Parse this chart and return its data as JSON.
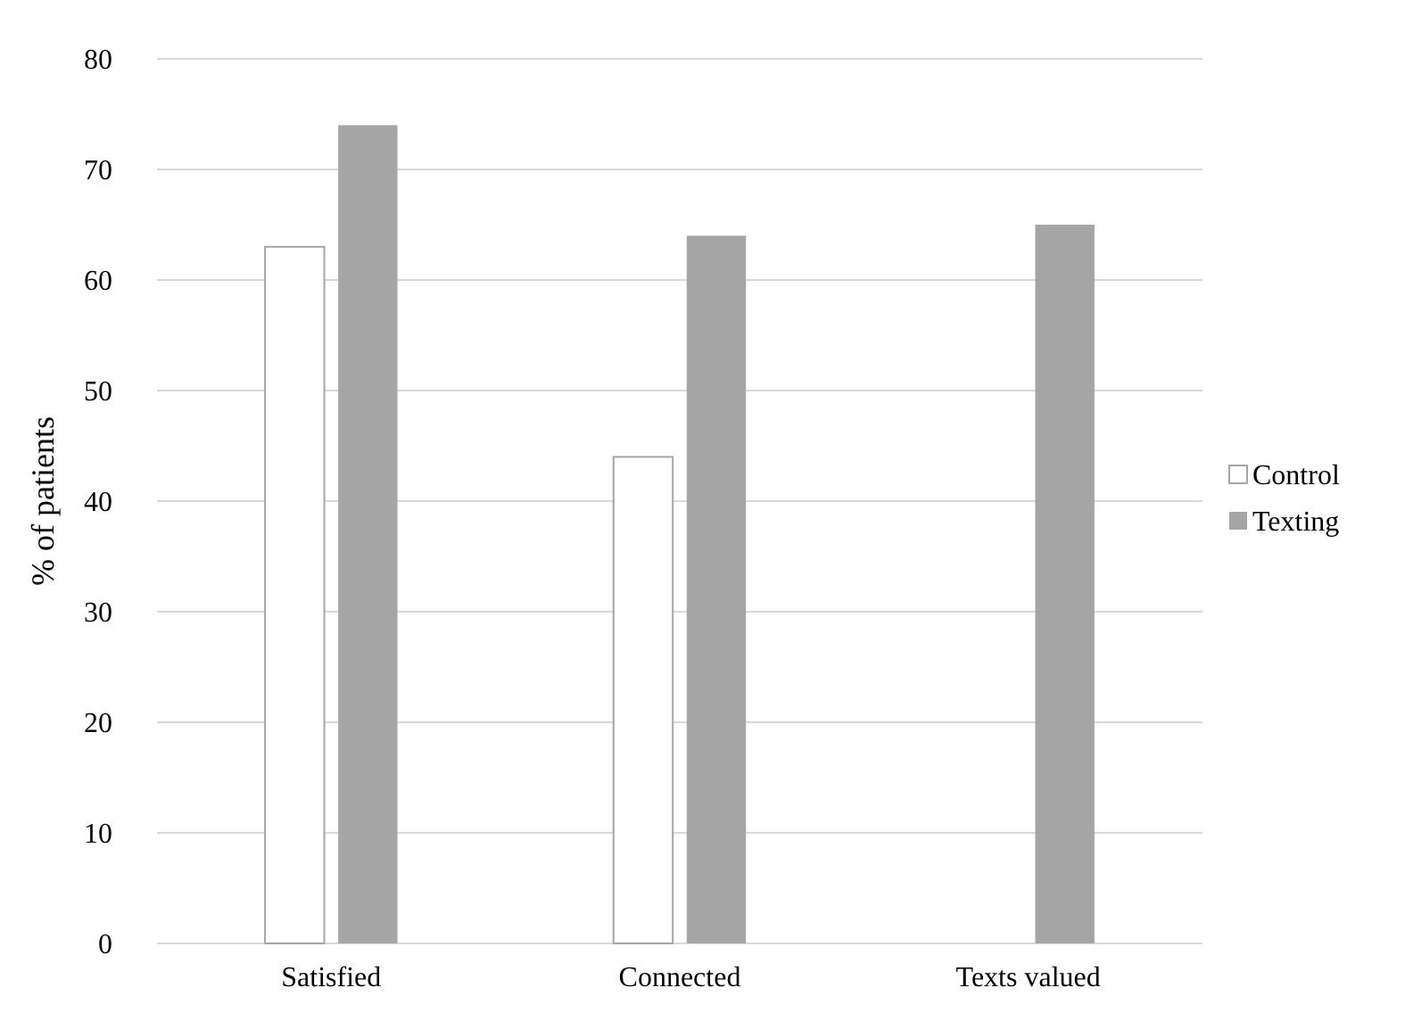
{
  "chart_data": {
    "type": "bar",
    "ylabel": "% of patients",
    "categories": [
      "Satisfied",
      "Connected",
      "Texts valued"
    ],
    "series": [
      {
        "name": "Control",
        "color": "#ffffff",
        "values": [
          63,
          44,
          null
        ]
      },
      {
        "name": "Texting",
        "color": "#a5a5a5",
        "values": [
          74,
          64,
          65
        ]
      }
    ],
    "ylim": [
      0,
      80
    ],
    "yticks": [
      0,
      10,
      20,
      30,
      40,
      50,
      60,
      70,
      80
    ],
    "grid": "y",
    "legend": "right"
  }
}
